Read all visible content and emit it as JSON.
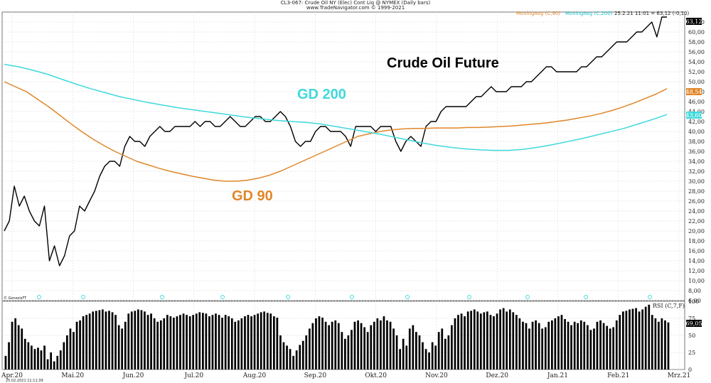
{
  "header": {
    "line1": "CL3-067: Crude Oil NY (Elec) Cont Liq @ NYMEX (Daily bars)",
    "line2": "www.TradeNavigator.com © 1999-2021"
  },
  "legend": {
    "ma90": "MovingAvg (C,90)",
    "ma200": "MovingAvg (C,200)",
    "quote": "25.2.21 11:01 = 63,12 (-0,10)"
  },
  "colors": {
    "price": "#000000",
    "ma90": "#e0862a",
    "ma200": "#3fd9dc",
    "rsi": "#000000"
  },
  "watermark": "© GenesisFT",
  "footer_stamp": "25.02.2021 11:11:39",
  "chart_data": [
    {
      "type": "line",
      "title": "Crude Oil Future",
      "ylim": [
        6,
        64
      ],
      "yticks": [
        6,
        8,
        10,
        12,
        14,
        16,
        18,
        20,
        22,
        24,
        26,
        28,
        30,
        32,
        34,
        36,
        38,
        40,
        42,
        44,
        46,
        48,
        50,
        52,
        54,
        56,
        58,
        60,
        62
      ],
      "x_labels": [
        "Apr.20",
        "Mai.20",
        "Jun.20",
        "Jul.20",
        "Aug.20",
        "Sep.20",
        "Okt.20",
        "Nov.20",
        "Dez.20",
        "Jan.21",
        "Feb.21",
        "Mrz.21"
      ],
      "grid": true,
      "current_values": {
        "price": "63,12",
        "ma90": "48,54",
        "ma200": "43,60"
      },
      "annotations": [
        {
          "text": "GD 200",
          "x": "Jul.20",
          "y": 47,
          "color": "#3fd9dc"
        },
        {
          "text": "GD 90",
          "x": "Jul.20",
          "y": 27.5,
          "color": "#e0862a"
        }
      ],
      "series": [
        {
          "name": "Crude Oil Future",
          "values": [
            20,
            22,
            29,
            25,
            27,
            24,
            22,
            21,
            25,
            14,
            17,
            13,
            15,
            19,
            20,
            25,
            24,
            26,
            28,
            31,
            33,
            34,
            34,
            33,
            37,
            39,
            38,
            38,
            37,
            39,
            40,
            41,
            40,
            40,
            41,
            41,
            41,
            41,
            42,
            41,
            42,
            42,
            41,
            41,
            42,
            43,
            42,
            41,
            41,
            42,
            43,
            43,
            42,
            42,
            43,
            44,
            43,
            41,
            38,
            37,
            38,
            38,
            40,
            41,
            41,
            40,
            40,
            40,
            39,
            37,
            41,
            41,
            41,
            41,
            40,
            41,
            41,
            41,
            38,
            36,
            38,
            39,
            38,
            37,
            41,
            42,
            42,
            44,
            45,
            45,
            45,
            45,
            45,
            46,
            47,
            47,
            48,
            49,
            48,
            48,
            48,
            49,
            49,
            49,
            50,
            50,
            51,
            52,
            53,
            53,
            52,
            52,
            52,
            52,
            52,
            53,
            53,
            54,
            55,
            55,
            56,
            57,
            58,
            58,
            58,
            59,
            60,
            60,
            61,
            62,
            59,
            63,
            63
          ]
        },
        {
          "name": "GD 90",
          "values": [
            50.0,
            49.0,
            48.0,
            46.5,
            45.0,
            43.3,
            41.6,
            40.0,
            38.5,
            37.2,
            36.0,
            35.0,
            34.0,
            33.3,
            32.6,
            32.0,
            31.5,
            31.0,
            30.6,
            30.2,
            30.0,
            30.0,
            30.2,
            30.6,
            31.2,
            32.0,
            33.0,
            34.0,
            35.0,
            36.0,
            37.0,
            38.0,
            39.0,
            39.5,
            40.0,
            40.3,
            40.5,
            40.6,
            40.6,
            40.7,
            40.7,
            40.7,
            40.8,
            40.8,
            40.9,
            41.0,
            41.1,
            41.3,
            41.5,
            41.7,
            42.0,
            42.3,
            42.7,
            43.1,
            43.6,
            44.2,
            44.9,
            45.7,
            46.6,
            47.5,
            48.6
          ]
        },
        {
          "name": "GD 200",
          "values": [
            53.5,
            53.0,
            52.3,
            51.5,
            50.5,
            49.5,
            48.6,
            47.8,
            47.0,
            46.4,
            45.8,
            45.3,
            44.8,
            44.4,
            44.0,
            43.6,
            43.2,
            42.8,
            42.5,
            42.2,
            42.0,
            41.8,
            41.5,
            41.0,
            40.5,
            40.0,
            39.5,
            38.9,
            38.3,
            37.7,
            37.2,
            36.8,
            36.5,
            36.3,
            36.2,
            36.2,
            36.4,
            36.8,
            37.3,
            37.9,
            38.5,
            39.2,
            39.9,
            40.6,
            41.5,
            42.4,
            43.4
          ]
        }
      ]
    },
    {
      "type": "bar",
      "title": "RSI (C,7,F)",
      "ylim": [
        0,
        100
      ],
      "yticks": [
        0,
        25,
        50,
        75,
        100
      ],
      "current_value": "69,05",
      "values": [
        20,
        40,
        70,
        75,
        65,
        60,
        45,
        40,
        35,
        30,
        32,
        28,
        35,
        15,
        25,
        12,
        20,
        28,
        40,
        50,
        60,
        55,
        70,
        72,
        78,
        80,
        82,
        85,
        86,
        87,
        88,
        85,
        86,
        84,
        80,
        65,
        60,
        70,
        82,
        85,
        86,
        88,
        87,
        85,
        80,
        82,
        75,
        70,
        72,
        75,
        80,
        78,
        76,
        78,
        80,
        82,
        80,
        78,
        80,
        82,
        84,
        83,
        82,
        78,
        80,
        82,
        80,
        76,
        80,
        78,
        75,
        70,
        72,
        75,
        78,
        80,
        78,
        80,
        82,
        84,
        85,
        83,
        82,
        78,
        76,
        50,
        40,
        35,
        30,
        20,
        28,
        36,
        42,
        50,
        60,
        68,
        75,
        78,
        76,
        70,
        65,
        70,
        72,
        68,
        55,
        45,
        50,
        58,
        70,
        72,
        68,
        62,
        55,
        65,
        70,
        75,
        72,
        78,
        72,
        70,
        60,
        50,
        30,
        45,
        35,
        60,
        65,
        55,
        50,
        40,
        30,
        25,
        40,
        35,
        55,
        60,
        45,
        50,
        65,
        75,
        80,
        82,
        78,
        85,
        86,
        88,
        85,
        82,
        84,
        85,
        80,
        78,
        82,
        88,
        90,
        85,
        88,
        84,
        80,
        75,
        70,
        68,
        60,
        70,
        72,
        68,
        60,
        62,
        70,
        72,
        75,
        78,
        80,
        74,
        70,
        65,
        70,
        68,
        72,
        70,
        65,
        58,
        60,
        70,
        72,
        68,
        64,
        60,
        62,
        72,
        80,
        85,
        86,
        88,
        89,
        90,
        85,
        88,
        92,
        95,
        80,
        75,
        70,
        75,
        72,
        69
      ]
    }
  ]
}
